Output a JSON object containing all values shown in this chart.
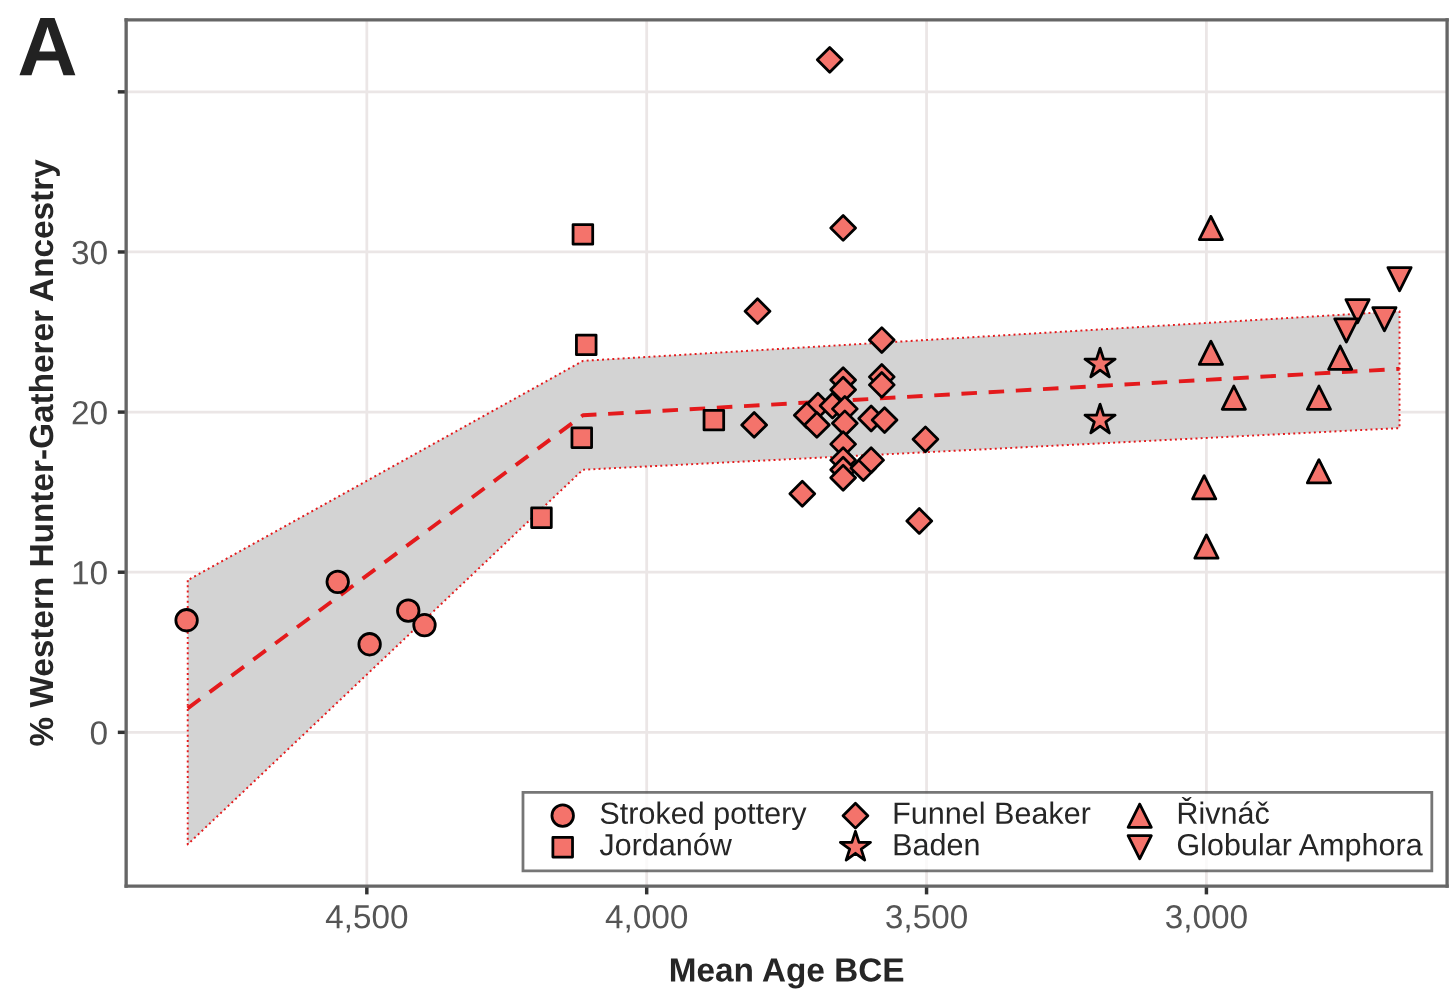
{
  "chart_data": {
    "type": "scatter",
    "annotations": [
      "A"
    ],
    "xlabel": "Mean Age BCE",
    "ylabel": "% Western Hunter-Gatherer Ancestry",
    "xlim": [
      4930,
      2570
    ],
    "xticks": [
      {
        "value": 4500,
        "label": "4,500"
      },
      {
        "value": 4000,
        "label": "4,000"
      },
      {
        "value": 3500,
        "label": "3,500"
      },
      {
        "value": 3000,
        "label": "3,000"
      }
    ],
    "ylim": [
      -9.6,
      44.5
    ],
    "yticks": [
      0,
      10,
      20,
      30,
      {
        "value": 40,
        "label": null
      }
    ],
    "grid": true,
    "legend": "bottom right",
    "series": [
      {
        "name": "Stroked pottery",
        "marker": "circle",
        "color": "#f4736b",
        "x": [
          4822,
          4552,
          4495,
          4426,
          4397
        ],
        "values": [
          7.0,
          9.4,
          5.5,
          7.6,
          6.7
        ]
      },
      {
        "name": "Jordanów",
        "marker": "square",
        "color": "#f4736b",
        "x": [
          4114,
          4108,
          4116,
          4188,
          3880
        ],
        "values": [
          31.1,
          24.2,
          18.4,
          13.4,
          19.5
        ]
      },
      {
        "name": "Funnel Beaker",
        "marker": "diamond",
        "color": "#f4736b",
        "x": [
          3673,
          3649,
          3802,
          3580,
          3649,
          3649,
          3580,
          3580,
          3694,
          3668,
          3714,
          3696,
          3646,
          3646,
          3599,
          3575,
          3808,
          3502,
          3649,
          3649,
          3649,
          3649,
          3613,
          3599,
          3722,
          3513
        ],
        "values": [
          42.0,
          31.5,
          26.3,
          24.5,
          22.0,
          21.4,
          22.2,
          21.7,
          20.4,
          20.4,
          19.8,
          19.2,
          20.2,
          19.3,
          19.6,
          19.5,
          19.2,
          18.3,
          18.0,
          17.0,
          16.4,
          15.9,
          16.5,
          17.0,
          14.9,
          13.2
        ]
      },
      {
        "name": "Baden",
        "marker": "star",
        "color": "#f4736b",
        "x": [
          3190,
          3190
        ],
        "values": [
          23.0,
          19.5
        ]
      },
      {
        "name": "Řivnáč",
        "marker": "triangle",
        "color": "#f4736b",
        "x": [
          2992,
          2992,
          2951,
          2799,
          2761,
          2799,
          3004,
          3000
        ],
        "values": [
          31.5,
          23.7,
          20.9,
          20.9,
          23.4,
          16.3,
          15.3,
          11.6
        ]
      },
      {
        "name": "Globular Amphora",
        "marker": "triangle-down",
        "color": "#f4736b",
        "x": [
          2655,
          2730,
          2682,
          2750
        ],
        "values": [
          28.3,
          26.3,
          25.8,
          25.1
        ]
      },
      {
        "type": "line",
        "line_style": "dashed",
        "color": "#e41a1c",
        "x": [
          4820,
          4114,
          2655
        ],
        "values": [
          1.5,
          19.8,
          22.7
        ],
        "lower": [
          -7.0,
          16.4,
          19.0
        ],
        "upper": [
          9.5,
          23.2,
          26.3
        ]
      }
    ]
  }
}
